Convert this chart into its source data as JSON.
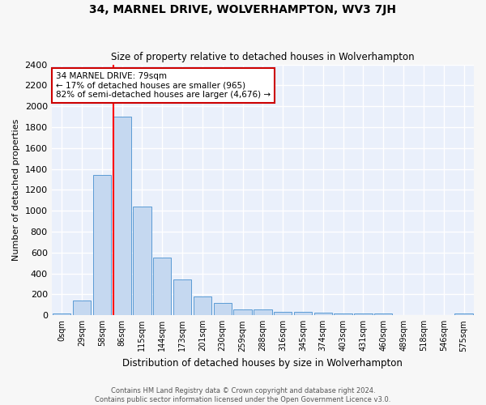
{
  "title": "34, MARNEL DRIVE, WOLVERHAMPTON, WV3 7JH",
  "subtitle": "Size of property relative to detached houses in Wolverhampton",
  "xlabel": "Distribution of detached houses by size in Wolverhampton",
  "ylabel": "Number of detached properties",
  "footnote1": "Contains HM Land Registry data © Crown copyright and database right 2024.",
  "footnote2": "Contains public sector information licensed under the Open Government Licence v3.0.",
  "categories": [
    "0sqm",
    "29sqm",
    "58sqm",
    "86sqm",
    "115sqm",
    "144sqm",
    "173sqm",
    "201sqm",
    "230sqm",
    "259sqm",
    "288sqm",
    "316sqm",
    "345sqm",
    "374sqm",
    "403sqm",
    "431sqm",
    "460sqm",
    "489sqm",
    "518sqm",
    "546sqm",
    "575sqm"
  ],
  "values": [
    20,
    140,
    1340,
    1900,
    1040,
    550,
    340,
    180,
    115,
    55,
    55,
    35,
    35,
    25,
    20,
    15,
    20,
    5,
    5,
    0,
    20
  ],
  "bar_color": "#c5d8f0",
  "bar_edge_color": "#5b9bd5",
  "bg_color": "#eaf0fb",
  "grid_color": "#ffffff",
  "fig_bg_color": "#f7f7f7",
  "red_line_x": 2.57,
  "annotation_text": "34 MARNEL DRIVE: 79sqm\n← 17% of detached houses are smaller (965)\n82% of semi-detached houses are larger (4,676) →",
  "annotation_box_color": "#ffffff",
  "annotation_box_edge": "#cc0000",
  "ylim": [
    0,
    2400
  ],
  "yticks": [
    0,
    200,
    400,
    600,
    800,
    1000,
    1200,
    1400,
    1600,
    1800,
    2000,
    2200,
    2400
  ]
}
